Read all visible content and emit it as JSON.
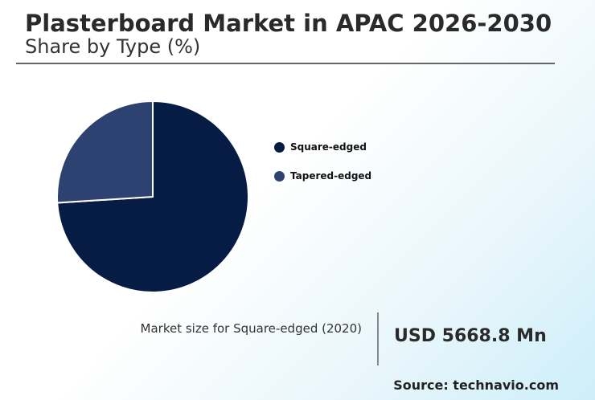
{
  "header": {
    "title": "Plasterboard Market in APAC 2026-2030",
    "subtitle": "Share by Type (%)"
  },
  "chart_data": {
    "type": "pie",
    "categories": [
      "Square-edged",
      "Tapered-edged"
    ],
    "values": [
      74,
      26
    ],
    "colors": [
      "#071c44",
      "#2e4272"
    ],
    "legend_placement": "right"
  },
  "summary": {
    "label": "Market size for Square-edged (2020)",
    "value": "USD 5668.8 Mn"
  },
  "source": "Source: technavio.com"
}
